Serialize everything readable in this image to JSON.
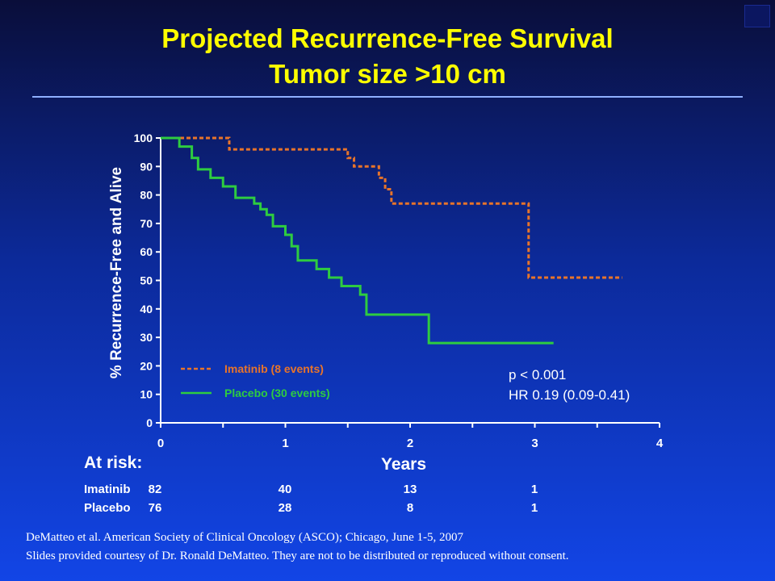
{
  "slide": {
    "title_line1": "Projected Recurrence-Free Survival",
    "title_line2": "Tumor size >10 cm"
  },
  "chart_data": {
    "type": "line",
    "step": true,
    "xlabel": "Years",
    "ylabel": "% Recurrence-Free and Alive",
    "xlim": [
      0,
      4
    ],
    "ylim": [
      0,
      100
    ],
    "xticks": [
      0,
      1,
      2,
      3,
      4
    ],
    "yticks": [
      0,
      10,
      20,
      30,
      40,
      50,
      60,
      70,
      80,
      90,
      100
    ],
    "series": [
      {
        "name": "Imatinib",
        "label": "Imatinib  (8 events)",
        "color": "#e8742a",
        "dash": true,
        "x": [
          0,
          0.5,
          0.55,
          1.15,
          1.5,
          1.55,
          1.7,
          1.75,
          1.8,
          1.85,
          2.95,
          3.7
        ],
        "y": [
          100,
          100,
          96,
          96,
          93,
          90,
          90,
          86,
          82,
          77,
          51,
          51
        ]
      },
      {
        "name": "Placebo",
        "label": "Placebo  (30 events)",
        "color": "#2ecc40",
        "dash": false,
        "x": [
          0,
          0.1,
          0.15,
          0.2,
          0.25,
          0.3,
          0.4,
          0.45,
          0.5,
          0.55,
          0.6,
          0.65,
          0.75,
          0.8,
          0.85,
          0.9,
          1.0,
          1.05,
          1.1,
          1.2,
          1.25,
          1.3,
          1.35,
          1.45,
          1.5,
          1.6,
          1.65,
          2.0,
          2.1,
          2.15,
          3.15
        ],
        "y": [
          100,
          100,
          97,
          97,
          93,
          89,
          86,
          86,
          83,
          83,
          79,
          79,
          77,
          75,
          73,
          69,
          66,
          62,
          57,
          57,
          54,
          54,
          51,
          48,
          48,
          45,
          38,
          38,
          38,
          28,
          28
        ]
      }
    ],
    "annotations": [
      "p < 0.001",
      "HR 0.19 (0.09-0.41)"
    ],
    "legend_position": "bottom-left"
  },
  "at_risk": {
    "heading": "At risk:",
    "rows": [
      {
        "label": "Imatinib",
        "values": [
          "82",
          "40",
          "13",
          "1"
        ]
      },
      {
        "label": "Placebo",
        "values": [
          "76",
          "28",
          "8",
          "1"
        ]
      }
    ]
  },
  "footer": {
    "line1": "DeMatteo et al.  American Society of Clinical Oncology (ASCO); Chicago, June 1-5, 2007",
    "line2": "Slides provided courtesy of Dr. Ronald DeMatteo.  They are not to be distributed or reproduced without consent."
  }
}
